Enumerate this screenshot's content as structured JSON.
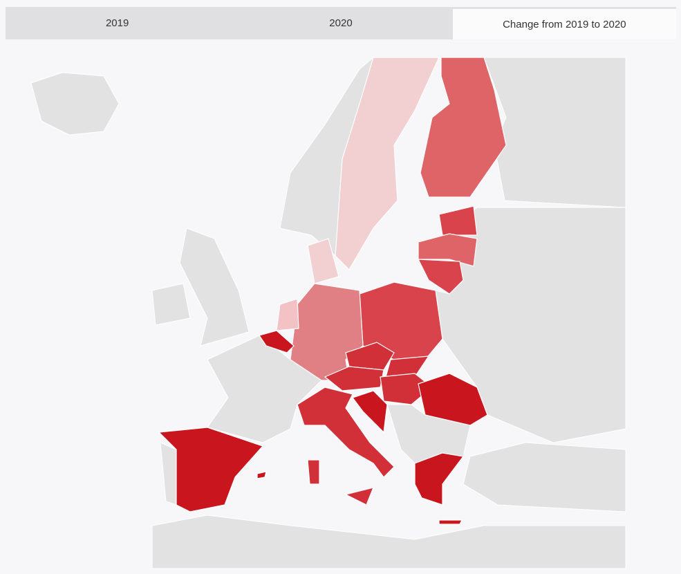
{
  "tabs": {
    "labels": [
      "2019",
      "2020",
      "Change from 2019 to 2020"
    ],
    "selected": 2
  }
}
